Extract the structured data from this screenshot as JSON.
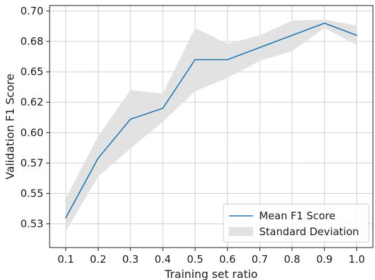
{
  "chart_data": {
    "type": "line",
    "title": "",
    "xlabel": "Training set ratio",
    "ylabel": "Validation F1 Score",
    "x": [
      0.1,
      0.2,
      0.3,
      0.4,
      0.5,
      0.6,
      0.7,
      0.8,
      0.9,
      1.0
    ],
    "x_tick_labels": [
      "0.1",
      "0.2",
      "0.3",
      "0.4",
      "0.5",
      "0.6",
      "0.7",
      "0.8",
      "0.9",
      "1.0"
    ],
    "y_ticks": [
      0.525,
      0.55,
      0.575,
      0.6,
      0.625,
      0.65,
      0.675,
      0.7
    ],
    "y_tick_labels": [
      "0.53",
      "0.55",
      "0.57",
      "0.60",
      "0.62",
      "0.65",
      "0.68",
      "0.70"
    ],
    "xlim": [
      0.05,
      1.05
    ],
    "ylim": [
      0.5055,
      0.7045
    ],
    "grid": true,
    "legend_position": "bottom-right",
    "series": [
      {
        "name": "Mean F1 Score",
        "type": "line",
        "color": "#1f77b4",
        "values": [
          0.53,
          0.579,
          0.611,
          0.62,
          0.66,
          0.66,
          0.67,
          0.68,
          0.69,
          0.68
        ]
      },
      {
        "name": "Standard Deviation",
        "type": "band",
        "color": "#e2e2e2",
        "upper": [
          0.546,
          0.597,
          0.635,
          0.632,
          0.686,
          0.673,
          0.68,
          0.692,
          0.693,
          0.688
        ],
        "lower": [
          0.519,
          0.564,
          0.587,
          0.609,
          0.634,
          0.645,
          0.659,
          0.667,
          0.686,
          0.672
        ]
      }
    ]
  }
}
